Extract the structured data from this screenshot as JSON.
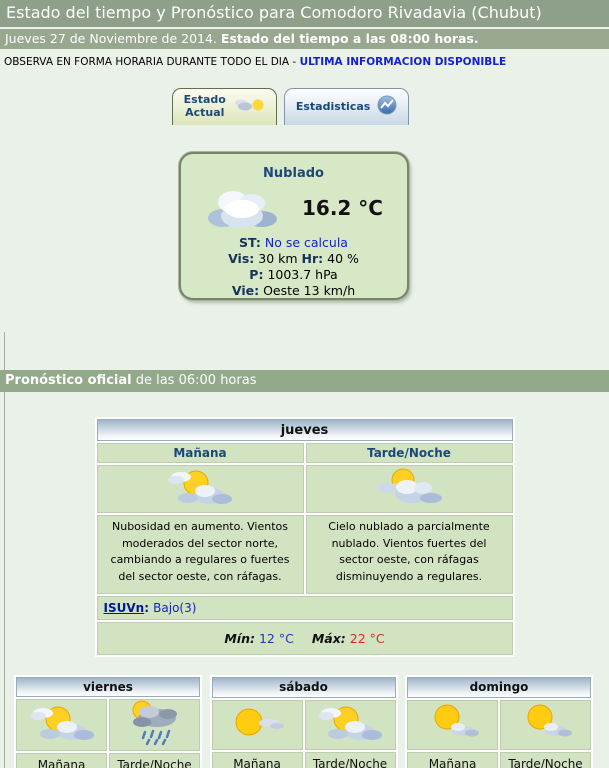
{
  "header": {
    "title": "Estado del tiempo y Pronóstico para Comodoro Rivadavia (Chubut)"
  },
  "datebar": {
    "date": "Jueves 27 de Noviembre de 2014. ",
    "status": "Estado del tiempo a las 08:00 horas."
  },
  "notice": {
    "text": "OBSERVA EN FORMA HORARIA DURANTE TODO EL DIA - ",
    "link": "ULTIMA INFORMACION DISPONIBLE"
  },
  "tabs": {
    "current": {
      "line1": "Estado",
      "line2": "Actual",
      "icon": "tab-weather"
    },
    "stats": {
      "label": "Estadisticas",
      "icon": "tab-stats"
    }
  },
  "current": {
    "condition": "Nublado",
    "icon": "cloud-large",
    "temperature": "16.2 °C",
    "st_label": "ST:",
    "st_value": "No se calcula",
    "vis_label": "Vis:",
    "vis_value": "30 km",
    "hr_label": "Hr:",
    "hr_value": "40 %",
    "p_label": "P:",
    "p_value": "1003.7 hPa",
    "vie_label": "Vie:",
    "vie_value": "Oeste 13 km/h"
  },
  "forecast_bar": {
    "bold": "Pronóstico oficial",
    "rest": " de las 06:00 horas"
  },
  "today": {
    "day": "jueves",
    "columns": [
      {
        "period": "Mañana",
        "icon": "sun-clouds",
        "text": "Nubosidad en aumento. Vientos moderados del sector norte, cambiando a regulares o fuertes del sector oeste, con ráfagas."
      },
      {
        "period": "Tarde/Noche",
        "icon": "clouds-sun",
        "text": "Cielo nublado a parcialmente nublado. Vientos fuertes del sector oeste, con ráfagas disminuyendo a regulares."
      }
    ],
    "isuv_label": "ISUVn",
    "isuv_colon": ": ",
    "isuv_value": "Bajo(3)",
    "min_label": "Mín:",
    "min_value": "12 °C",
    "max_label": "Máx:",
    "max_value": "22 °C"
  },
  "days": [
    {
      "day": "viernes",
      "cells": [
        {
          "period": "Mañana",
          "icon": "sun-clouds"
        },
        {
          "period": "Tarde/Noche",
          "icon": "rain"
        }
      ]
    },
    {
      "day": "sábado",
      "cells": [
        {
          "period": "Mañana",
          "icon": "sun-wisp"
        },
        {
          "period": "Tarde/Noche",
          "icon": "sun-clouds"
        }
      ]
    },
    {
      "day": "domingo",
      "cells": [
        {
          "period": "Mañana",
          "icon": "sun-small-cloud"
        },
        {
          "period": "Tarde/Noche",
          "icon": "sun-small-cloud"
        }
      ]
    }
  ],
  "colors": {
    "page_bg": "#eaf1e8",
    "bar_green": "#93aa8a",
    "cell_green": "#d2e3c1",
    "navy": "#1b4878",
    "link_blue": "#1322cc",
    "min_blue": "#1f35c8",
    "max_red": "#db2a1d"
  }
}
